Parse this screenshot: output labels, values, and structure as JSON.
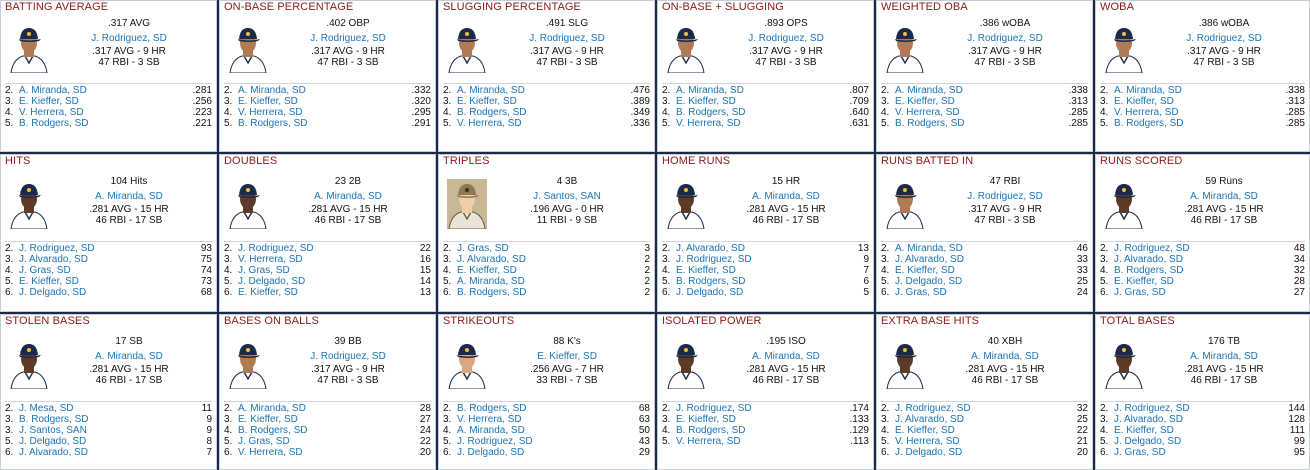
{
  "colors": {
    "title": "#8a1a1a",
    "link": "#1a74b8",
    "background": "#1c2a4a",
    "card": "#ffffff"
  },
  "cards": [
    {
      "title": "BATTING AVERAGE",
      "leader": {
        "photo": "padres-player-photo",
        "value": ".317 AVG",
        "name": "J. Rodriguez, SD",
        "line1": ".317 AVG - 9 HR",
        "line2": "47 RBI - 3 SB"
      },
      "others": [
        {
          "rank": "2.",
          "name": "A. Miranda, SD",
          "value": ".281"
        },
        {
          "rank": "3.",
          "name": "E. Kieffer, SD",
          "value": ".256"
        },
        {
          "rank": "4.",
          "name": "V. Herrera, SD",
          "value": ".223"
        },
        {
          "rank": "5.",
          "name": "B. Rodgers, SD",
          "value": ".221"
        }
      ]
    },
    {
      "title": "ON-BASE PERCENTAGE",
      "leader": {
        "photo": "padres-player-photo",
        "value": ".402 OBP",
        "name": "J. Rodriguez, SD",
        "line1": ".317 AVG - 9 HR",
        "line2": "47 RBI - 3 SB"
      },
      "others": [
        {
          "rank": "2.",
          "name": "A. Miranda, SD",
          "value": ".332"
        },
        {
          "rank": "3.",
          "name": "E. Kieffer, SD",
          "value": ".320"
        },
        {
          "rank": "4.",
          "name": "V. Herrera, SD",
          "value": ".295"
        },
        {
          "rank": "5.",
          "name": "B. Rodgers, SD",
          "value": ".291"
        }
      ]
    },
    {
      "title": "SLUGGING PERCENTAGE",
      "leader": {
        "photo": "padres-player-photo",
        "value": ".491 SLG",
        "name": "J. Rodriguez, SD",
        "line1": ".317 AVG - 9 HR",
        "line2": "47 RBI - 3 SB"
      },
      "others": [
        {
          "rank": "2.",
          "name": "A. Miranda, SD",
          "value": ".476"
        },
        {
          "rank": "3.",
          "name": "E. Kieffer, SD",
          "value": ".389"
        },
        {
          "rank": "4.",
          "name": "B. Rodgers, SD",
          "value": ".349"
        },
        {
          "rank": "5.",
          "name": "V. Herrera, SD",
          "value": ".336"
        }
      ]
    },
    {
      "title": "ON-BASE + SLUGGING",
      "leader": {
        "photo": "padres-player-photo",
        "value": ".893 OPS",
        "name": "J. Rodriguez, SD",
        "line1": ".317 AVG - 9 HR",
        "line2": "47 RBI - 3 SB"
      },
      "others": [
        {
          "rank": "2.",
          "name": "A. Miranda, SD",
          "value": ".807"
        },
        {
          "rank": "3.",
          "name": "E. Kieffer, SD",
          "value": ".709"
        },
        {
          "rank": "4.",
          "name": "B. Rodgers, SD",
          "value": ".640"
        },
        {
          "rank": "5.",
          "name": "V. Herrera, SD",
          "value": ".631"
        }
      ]
    },
    {
      "title": "WEIGHTED OBA",
      "leader": {
        "photo": "padres-player-photo",
        "value": ".386 wOBA",
        "name": "J. Rodriguez, SD",
        "line1": ".317 AVG - 9 HR",
        "line2": "47 RBI - 3 SB"
      },
      "others": [
        {
          "rank": "2.",
          "name": "A. Miranda, SD",
          "value": ".338"
        },
        {
          "rank": "3.",
          "name": "E. Kieffer, SD",
          "value": ".313"
        },
        {
          "rank": "4.",
          "name": "V. Herrera, SD",
          "value": ".285"
        },
        {
          "rank": "5.",
          "name": "B. Rodgers, SD",
          "value": ".285"
        }
      ]
    },
    {
      "title": "WOBA",
      "leader": {
        "photo": "padres-player-photo",
        "value": ".386 wOBA",
        "name": "J. Rodriguez, SD",
        "line1": ".317 AVG - 9 HR",
        "line2": "47 RBI - 3 SB"
      },
      "others": [
        {
          "rank": "2.",
          "name": "A. Miranda, SD",
          "value": ".338"
        },
        {
          "rank": "3.",
          "name": "E. Kieffer, SD",
          "value": ".313"
        },
        {
          "rank": "4.",
          "name": "V. Herrera, SD",
          "value": ".285"
        },
        {
          "rank": "5.",
          "name": "B. Rodgers, SD",
          "value": ".285"
        }
      ]
    },
    {
      "title": "HITS",
      "leader": {
        "photo": "padres-player-photo",
        "value": "104 Hits",
        "name": "A. Miranda, SD",
        "line1": ".281 AVG - 15 HR",
        "line2": "46 RBI - 17 SB"
      },
      "others": [
        {
          "rank": "2.",
          "name": "J. Rodriguez, SD",
          "value": "93"
        },
        {
          "rank": "3.",
          "name": "J. Alvarado, SD",
          "value": "75"
        },
        {
          "rank": "4.",
          "name": "J. Gras, SD",
          "value": "74"
        },
        {
          "rank": "5.",
          "name": "E. Kieffer, SD",
          "value": "73"
        },
        {
          "rank": "6.",
          "name": "J. Delgado, SD",
          "value": "68"
        }
      ]
    },
    {
      "title": "DOUBLES",
      "leader": {
        "photo": "padres-player-photo",
        "value": "23 2B",
        "name": "A. Miranda, SD",
        "line1": ".281 AVG - 15 HR",
        "line2": "46 RBI - 17 SB"
      },
      "others": [
        {
          "rank": "2.",
          "name": "J. Rodriguez, SD",
          "value": "22"
        },
        {
          "rank": "3.",
          "name": "V. Herrera, SD",
          "value": "16"
        },
        {
          "rank": "4.",
          "name": "J. Gras, SD",
          "value": "15"
        },
        {
          "rank": "5.",
          "name": "J. Delgado, SD",
          "value": "14"
        },
        {
          "rank": "6.",
          "name": "E. Kieffer, SD",
          "value": "13"
        }
      ]
    },
    {
      "title": "TRIPLES",
      "leader": {
        "photo": "padres-alt-photo",
        "value": "4 3B",
        "name": "J. Santos, SAN",
        "line1": ".196 AVG - 0 HR",
        "line2": "11 RBI - 9 SB"
      },
      "others": [
        {
          "rank": "2.",
          "name": "J. Gras, SD",
          "value": "3"
        },
        {
          "rank": "3.",
          "name": "J. Alvarado, SD",
          "value": "2"
        },
        {
          "rank": "4.",
          "name": "E. Kieffer, SD",
          "value": "2"
        },
        {
          "rank": "5.",
          "name": "A. Miranda, SD",
          "value": "2"
        },
        {
          "rank": "6.",
          "name": "B. Rodgers, SD",
          "value": "2"
        }
      ]
    },
    {
      "title": "HOME RUNS",
      "leader": {
        "photo": "padres-player-photo",
        "value": "15 HR",
        "name": "A. Miranda, SD",
        "line1": ".281 AVG - 15 HR",
        "line2": "46 RBI - 17 SB"
      },
      "others": [
        {
          "rank": "2.",
          "name": "J. Alvarado, SD",
          "value": "13"
        },
        {
          "rank": "3.",
          "name": "J. Rodriguez, SD",
          "value": "9"
        },
        {
          "rank": "4.",
          "name": "E. Kieffer, SD",
          "value": "7"
        },
        {
          "rank": "5.",
          "name": "B. Rodgers, SD",
          "value": "6"
        },
        {
          "rank": "6.",
          "name": "J. Delgado, SD",
          "value": "5"
        }
      ]
    },
    {
      "title": "RUNS BATTED IN",
      "leader": {
        "photo": "padres-player-photo",
        "value": "47 RBI",
        "name": "J. Rodriguez, SD",
        "line1": ".317 AVG - 9 HR",
        "line2": "47 RBI - 3 SB"
      },
      "others": [
        {
          "rank": "2.",
          "name": "A. Miranda, SD",
          "value": "46"
        },
        {
          "rank": "3.",
          "name": "J. Alvarado, SD",
          "value": "33"
        },
        {
          "rank": "4.",
          "name": "E. Kieffer, SD",
          "value": "33"
        },
        {
          "rank": "5.",
          "name": "J. Delgado, SD",
          "value": "25"
        },
        {
          "rank": "6.",
          "name": "J. Gras, SD",
          "value": "24"
        }
      ]
    },
    {
      "title": "RUNS SCORED",
      "leader": {
        "photo": "padres-player-photo",
        "value": "59 Runs",
        "name": "A. Miranda, SD",
        "line1": ".281 AVG - 15 HR",
        "line2": "46 RBI - 17 SB"
      },
      "others": [
        {
          "rank": "2.",
          "name": "J. Rodriguez, SD",
          "value": "48"
        },
        {
          "rank": "3.",
          "name": "J. Alvarado, SD",
          "value": "34"
        },
        {
          "rank": "4.",
          "name": "B. Rodgers, SD",
          "value": "32"
        },
        {
          "rank": "5.",
          "name": "E. Kieffer, SD",
          "value": "28"
        },
        {
          "rank": "6.",
          "name": "J. Gras, SD",
          "value": "27"
        }
      ]
    },
    {
      "title": "STOLEN BASES",
      "leader": {
        "photo": "padres-player-photo",
        "value": "17 SB",
        "name": "A. Miranda, SD",
        "line1": ".281 AVG - 15 HR",
        "line2": "46 RBI - 17 SB"
      },
      "others": [
        {
          "rank": "2.",
          "name": "J. Mesa, SD",
          "value": "11"
        },
        {
          "rank": "3.",
          "name": "B. Rodgers, SD",
          "value": "9"
        },
        {
          "rank": "3.",
          "name": "J. Santos, SAN",
          "value": "9"
        },
        {
          "rank": "5.",
          "name": "J. Delgado, SD",
          "value": "8"
        },
        {
          "rank": "6.",
          "name": "J. Alvarado, SD",
          "value": "7"
        }
      ]
    },
    {
      "title": "BASES ON BALLS",
      "leader": {
        "photo": "padres-player-photo",
        "value": "39 BB",
        "name": "J. Rodriguez, SD",
        "line1": ".317 AVG - 9 HR",
        "line2": "47 RBI - 3 SB"
      },
      "others": [
        {
          "rank": "2.",
          "name": "A. Miranda, SD",
          "value": "28"
        },
        {
          "rank": "3.",
          "name": "E. Kieffer, SD",
          "value": "27"
        },
        {
          "rank": "4.",
          "name": "B. Rodgers, SD",
          "value": "24"
        },
        {
          "rank": "5.",
          "name": "J. Gras, SD",
          "value": "22"
        },
        {
          "rank": "6.",
          "name": "V. Herrera, SD",
          "value": "20"
        }
      ]
    },
    {
      "title": "STRIKEOUTS",
      "leader": {
        "photo": "padres-player-photo",
        "value": "88 K's",
        "name": "E. Kieffer, SD",
        "line1": ".256 AVG - 7 HR",
        "line2": "33 RBI - 7 SB"
      },
      "others": [
        {
          "rank": "2.",
          "name": "B. Rodgers, SD",
          "value": "68"
        },
        {
          "rank": "3.",
          "name": "V. Herrera, SD",
          "value": "63"
        },
        {
          "rank": "4.",
          "name": "A. Miranda, SD",
          "value": "50"
        },
        {
          "rank": "5.",
          "name": "J. Rodriguez, SD",
          "value": "43"
        },
        {
          "rank": "6.",
          "name": "J. Delgado, SD",
          "value": "29"
        }
      ]
    },
    {
      "title": "ISOLATED POWER",
      "leader": {
        "photo": "padres-player-photo",
        "value": ".195 ISO",
        "name": "A. Miranda, SD",
        "line1": ".281 AVG - 15 HR",
        "line2": "46 RBI - 17 SB"
      },
      "others": [
        {
          "rank": "2.",
          "name": "J. Rodriguez, SD",
          "value": ".174"
        },
        {
          "rank": "3.",
          "name": "E. Kieffer, SD",
          "value": ".133"
        },
        {
          "rank": "4.",
          "name": "B. Rodgers, SD",
          "value": ".129"
        },
        {
          "rank": "5.",
          "name": "V. Herrera, SD",
          "value": ".113"
        }
      ]
    },
    {
      "title": "EXTRA BASE HITS",
      "leader": {
        "photo": "padres-player-photo",
        "value": "40 XBH",
        "name": "A. Miranda, SD",
        "line1": ".281 AVG - 15 HR",
        "line2": "46 RBI - 17 SB"
      },
      "others": [
        {
          "rank": "2.",
          "name": "J. Rodriguez, SD",
          "value": "32"
        },
        {
          "rank": "3.",
          "name": "J. Alvarado, SD",
          "value": "25"
        },
        {
          "rank": "4.",
          "name": "E. Kieffer, SD",
          "value": "22"
        },
        {
          "rank": "5.",
          "name": "V. Herrera, SD",
          "value": "21"
        },
        {
          "rank": "6.",
          "name": "J. Delgado, SD",
          "value": "20"
        }
      ]
    },
    {
      "title": "TOTAL BASES",
      "leader": {
        "photo": "padres-player-photo",
        "value": "176 TB",
        "name": "A. Miranda, SD",
        "line1": ".281 AVG - 15 HR",
        "line2": "46 RBI - 17 SB"
      },
      "others": [
        {
          "rank": "2.",
          "name": "J. Rodriguez, SD",
          "value": "144"
        },
        {
          "rank": "3.",
          "name": "J. Alvarado, SD",
          "value": "128"
        },
        {
          "rank": "4.",
          "name": "E. Kieffer, SD",
          "value": "111"
        },
        {
          "rank": "5.",
          "name": "J. Delgado, SD",
          "value": "99"
        },
        {
          "rank": "6.",
          "name": "J. Gras, SD",
          "value": "95"
        }
      ]
    }
  ]
}
